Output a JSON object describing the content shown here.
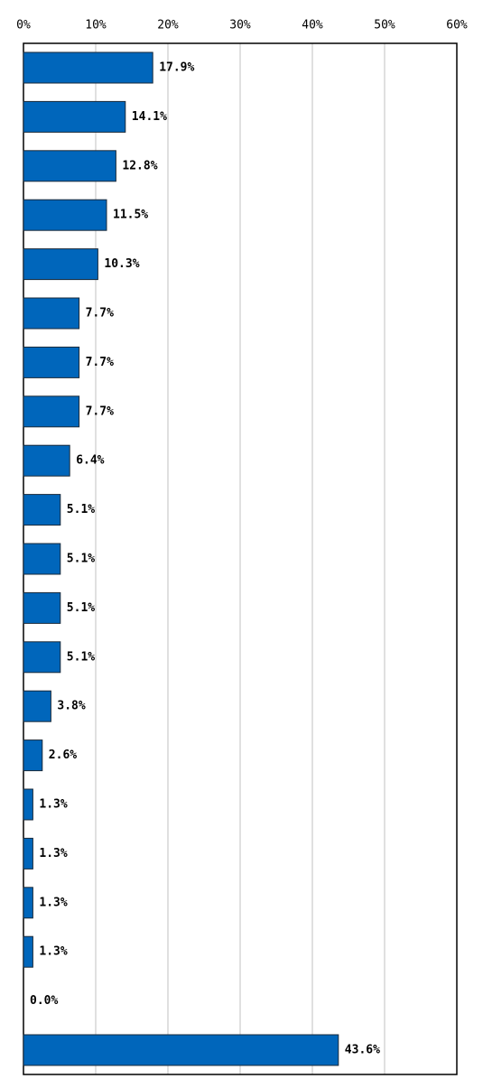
{
  "chart_data": {
    "type": "bar",
    "orientation": "horizontal",
    "categories": [
      null,
      null,
      null,
      null,
      null,
      null,
      null,
      null,
      null,
      null,
      null,
      null,
      null,
      null,
      null,
      null,
      null,
      null,
      null,
      null,
      null
    ],
    "values": [
      17.9,
      14.1,
      12.8,
      11.5,
      10.3,
      7.7,
      7.7,
      7.7,
      6.4,
      5.1,
      5.1,
      5.1,
      5.1,
      3.8,
      2.6,
      1.3,
      1.3,
      1.3,
      1.3,
      0.0,
      43.6
    ],
    "value_labels": [
      "17.9%",
      "14.1%",
      "12.8%",
      "11.5%",
      "10.3%",
      "7.7%",
      "7.7%",
      "7.7%",
      "6.4%",
      "5.1%",
      "5.1%",
      "5.1%",
      "5.1%",
      "3.8%",
      "2.6%",
      "1.3%",
      "1.3%",
      "1.3%",
      "1.3%",
      "0.0%",
      "43.6%"
    ],
    "color": "#0066bb",
    "xlim": [
      0,
      60
    ],
    "xticks": [
      {
        "value": 0,
        "label": "0%"
      },
      {
        "value": 10,
        "label": "10%"
      },
      {
        "value": 20,
        "label": "20%"
      },
      {
        "value": 30,
        "label": "30%"
      },
      {
        "value": 40,
        "label": "40%"
      },
      {
        "value": 50,
        "label": "50%"
      },
      {
        "value": 60,
        "label": "60%"
      }
    ],
    "grid": true
  }
}
